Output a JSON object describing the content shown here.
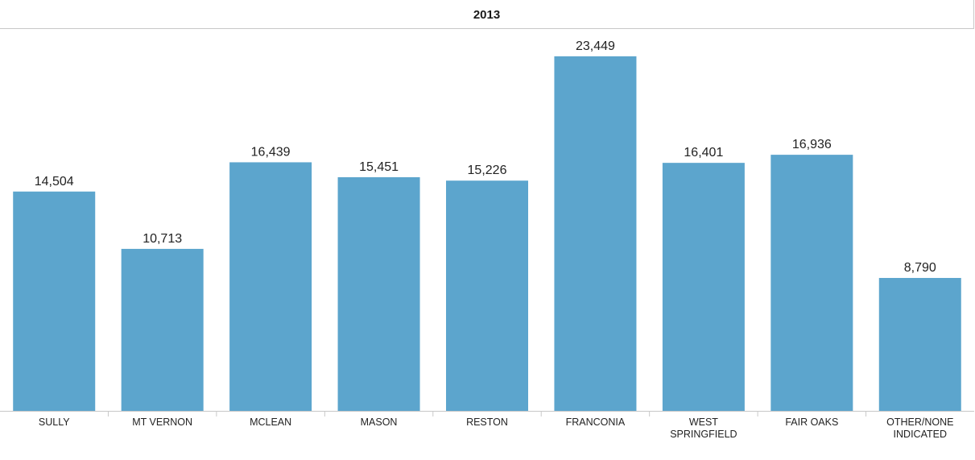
{
  "chart_data": {
    "type": "bar",
    "title": "2013",
    "categories": [
      [
        "SULLY"
      ],
      [
        "MT VERNON"
      ],
      [
        "MCLEAN"
      ],
      [
        "MASON"
      ],
      [
        "RESTON"
      ],
      [
        "FRANCONIA"
      ],
      [
        "WEST",
        "SPRINGFIELD"
      ],
      [
        "FAIR OAKS"
      ],
      [
        "OTHER/NONE",
        "INDICATED"
      ]
    ],
    "values": [
      14504,
      10713,
      16439,
      15451,
      15226,
      23449,
      16401,
      16936,
      8790
    ],
    "value_labels": [
      "14,504",
      "10,713",
      "16,439",
      "15,451",
      "15,226",
      "23,449",
      "16,401",
      "16,936",
      "8,790"
    ],
    "ylim": [
      0,
      25200
    ],
    "xlabel": "",
    "ylabel": "",
    "grid": false,
    "bar_color": "#5ca5cd"
  }
}
